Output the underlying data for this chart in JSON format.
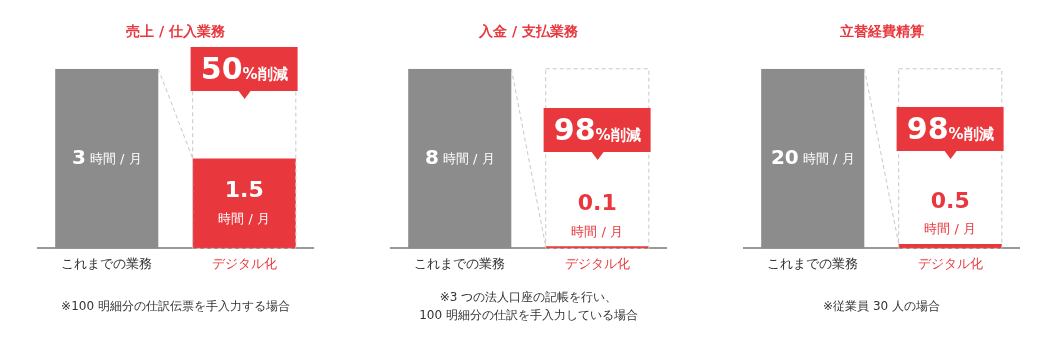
{
  "chart_data": [
    {
      "type": "bar",
      "title": "売上 / 仕入業務",
      "categories": [
        "これまでの業務",
        "デジタル化"
      ],
      "values": [
        3,
        1.5
      ],
      "colors": [
        "#8c8c8c",
        "#e8383d"
      ],
      "value_labels": [
        "3 時間 / 月",
        "1.5 時間 / 月"
      ],
      "annotations": [
        "50%削減",
        "※100 明細分の仕訳伝票を手入力する場合"
      ]
    },
    {
      "type": "bar",
      "title": "入金 / 支払業務",
      "categories": [
        "これまでの業務",
        "デジタル化"
      ],
      "values": [
        8,
        0.1
      ],
      "colors": [
        "#8c8c8c",
        "#e8383d"
      ],
      "value_labels": [
        "8 時間 / 月",
        "0.1 時間 / 月"
      ],
      "annotations": [
        "98%削減",
        "※3 つの法人口座の記帳を行い、\n100 明細分の仕訳を手入力している場合"
      ]
    },
    {
      "type": "bar",
      "title": "立替経費精算",
      "categories": [
        "これまでの業務",
        "デジタル化"
      ],
      "values": [
        20,
        0.5
      ],
      "colors": [
        "#8c8c8c",
        "#e8383d"
      ],
      "value_labels": [
        "20 時間 / 月",
        "0.5 時間 / 月"
      ],
      "annotations": [
        "98%削減",
        "※従業員 30 人の場合"
      ]
    }
  ]
}
